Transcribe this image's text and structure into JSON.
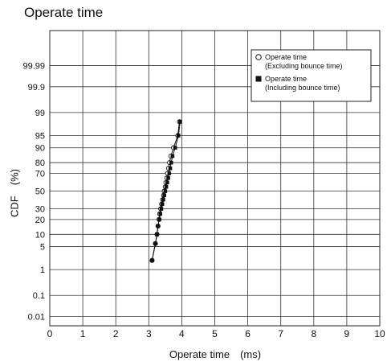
{
  "page": {
    "title": "Operate time"
  },
  "chart_data": {
    "type": "scatter",
    "title": "Operate time",
    "xlabel": "Operate time　(ms)",
    "ylabel": "CDF　(%)",
    "xlim": [
      0,
      10
    ],
    "x_ticks": [
      "0",
      "1",
      "2",
      "3",
      "4",
      "5",
      "6",
      "7",
      "8",
      "9",
      "10"
    ],
    "y_scale": "normal-probability",
    "y_ticks": [
      "0.01",
      "0.1",
      "1",
      "5",
      "10",
      "20",
      "30",
      "50",
      "70",
      "80",
      "90",
      "95",
      "99",
      "99.9",
      "99.99"
    ],
    "grid": true,
    "legend_position": "top-right",
    "series": [
      {
        "name": "Operate time\n(Excluding bounce time)",
        "legend_line1": "Operate time",
        "legend_line2": "(Excluding bounce time)",
        "marker": "open-circle",
        "points": [
          [
            3.1,
            2
          ],
          [
            3.2,
            6
          ],
          [
            3.25,
            10
          ],
          [
            3.28,
            15
          ],
          [
            3.31,
            20
          ],
          [
            3.33,
            25
          ],
          [
            3.36,
            30
          ],
          [
            3.39,
            35
          ],
          [
            3.42,
            40
          ],
          [
            3.45,
            45
          ],
          [
            3.47,
            50
          ],
          [
            3.5,
            55
          ],
          [
            3.52,
            60
          ],
          [
            3.55,
            65
          ],
          [
            3.57,
            70
          ],
          [
            3.6,
            75
          ],
          [
            3.63,
            80
          ],
          [
            3.67,
            85
          ],
          [
            3.75,
            90
          ],
          [
            3.88,
            95
          ],
          [
            3.93,
            98
          ]
        ]
      },
      {
        "name": "Operate time\n(Including bounce time)",
        "legend_line1": "Operate time",
        "legend_line2": "(Including bounce time)",
        "marker": "filled-square",
        "points": [
          [
            3.1,
            2
          ],
          [
            3.2,
            6
          ],
          [
            3.25,
            10
          ],
          [
            3.28,
            15
          ],
          [
            3.32,
            20
          ],
          [
            3.35,
            25
          ],
          [
            3.38,
            30
          ],
          [
            3.41,
            35
          ],
          [
            3.44,
            40
          ],
          [
            3.47,
            45
          ],
          [
            3.5,
            50
          ],
          [
            3.53,
            55
          ],
          [
            3.56,
            60
          ],
          [
            3.59,
            65
          ],
          [
            3.62,
            70
          ],
          [
            3.65,
            75
          ],
          [
            3.68,
            80
          ],
          [
            3.72,
            85
          ],
          [
            3.8,
            90
          ],
          [
            3.9,
            95
          ],
          [
            3.95,
            98
          ]
        ]
      }
    ]
  }
}
